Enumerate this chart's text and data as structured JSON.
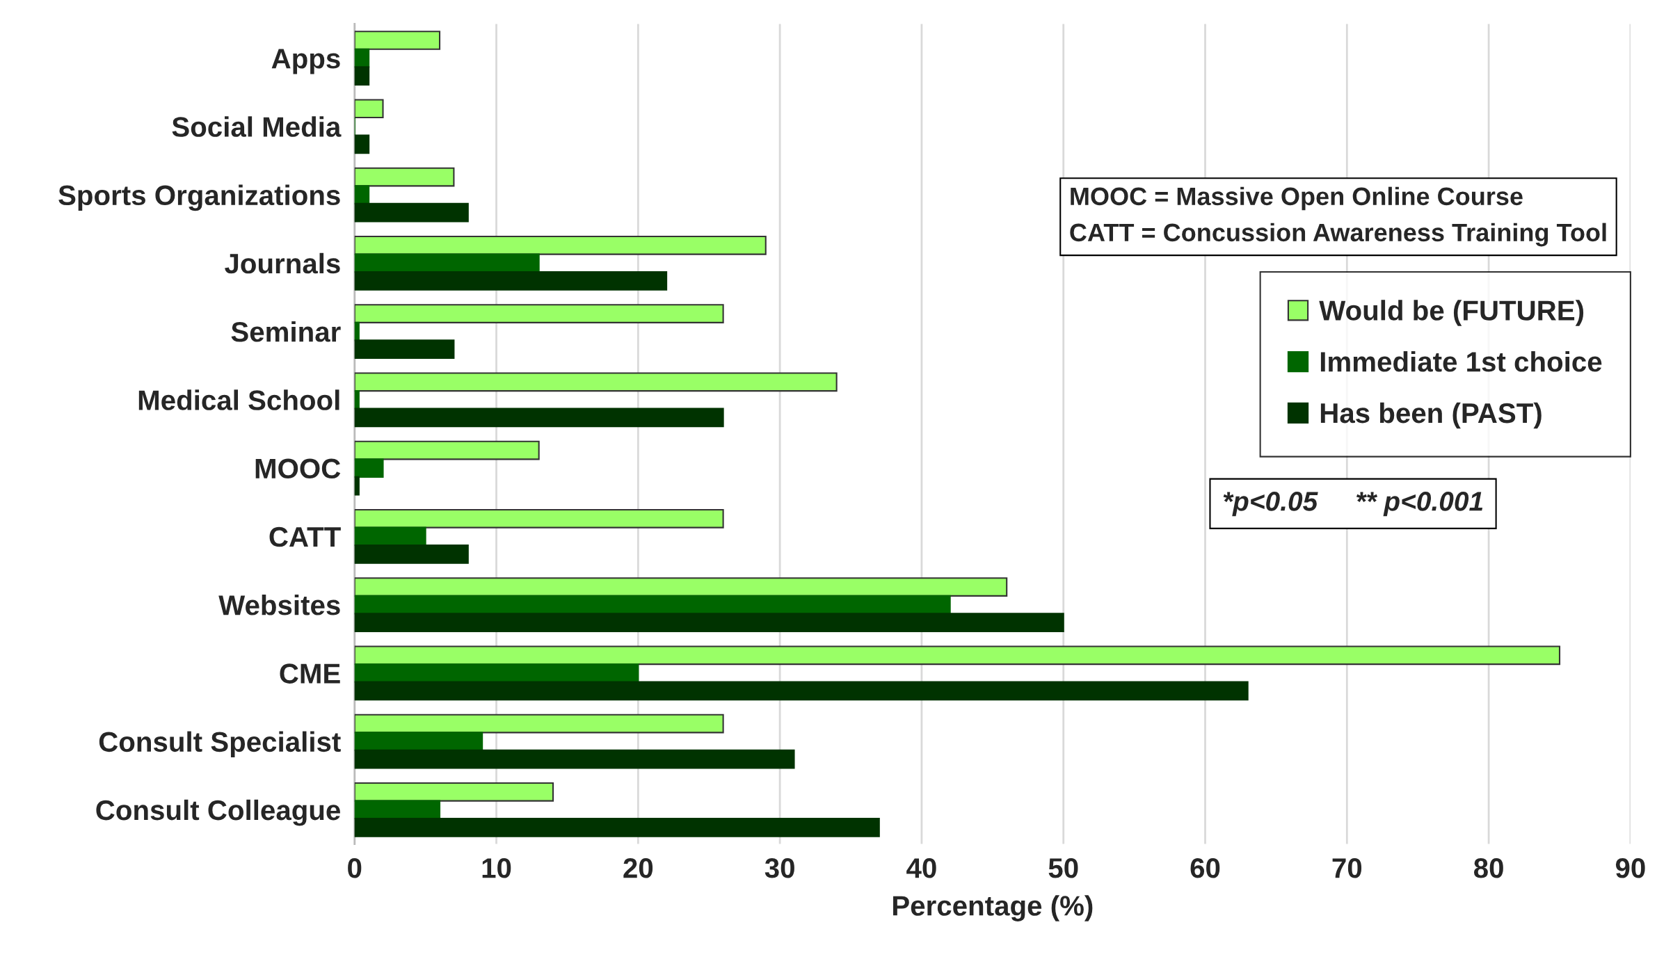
{
  "chart_data": {
    "type": "bar",
    "orientation": "horizontal",
    "xlabel": "Percentage (%)",
    "categories": [
      "Apps",
      "Social Media",
      "Sports Organizations",
      "Journals",
      "Seminar",
      "Medical School",
      "MOOC",
      "CATT",
      "Websites",
      "CME",
      "Consult Specialist",
      "Consult Colleague"
    ],
    "series": [
      {
        "name": "Would be (FUTURE)",
        "color": "#99ff66",
        "values": [
          6,
          2,
          7,
          29,
          26,
          34,
          13,
          26,
          46,
          85,
          26,
          14
        ]
      },
      {
        "name": "Immediate 1st choice",
        "color": "#006600",
        "values": [
          1,
          0,
          1,
          13,
          0.3,
          0.3,
          2,
          5,
          42,
          20,
          9,
          6
        ]
      },
      {
        "name": "Has been (PAST)",
        "color": "#003300",
        "values": [
          1,
          1,
          8,
          22,
          7,
          26,
          0.3,
          8,
          50,
          63,
          31,
          37
        ]
      }
    ],
    "xlim": [
      0,
      90
    ],
    "xticks": [
      0,
      10,
      20,
      30,
      40,
      50,
      60,
      70,
      80,
      90
    ],
    "grid": "x",
    "legend": "right",
    "annotations": [
      "MOOC = Massive Open Online Course\nCATT = Concussion Awareness Training Tool",
      "*p<0.05     ** p<0.001"
    ]
  }
}
